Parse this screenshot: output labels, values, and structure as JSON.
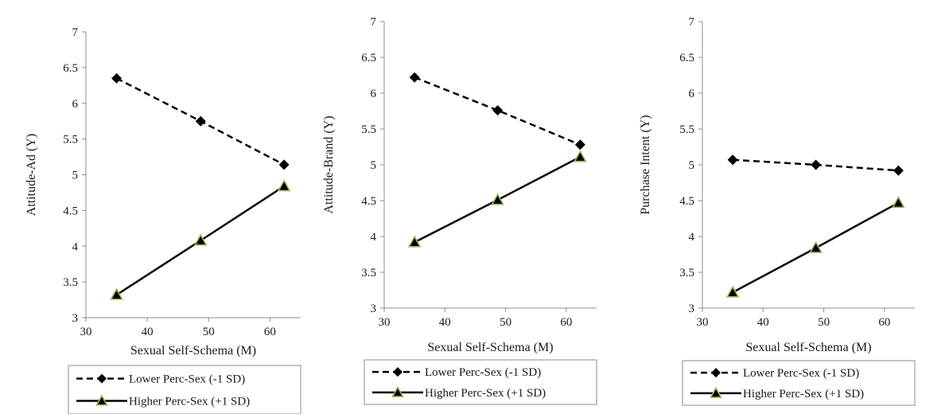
{
  "chart_data": [
    {
      "type": "line",
      "xlabel": "Sexual Self-Schema (M)",
      "ylabel": "Attitude-Ad (Y)",
      "xlim": [
        30,
        65
      ],
      "ylim": [
        3,
        7
      ],
      "x_ticks": [
        "30",
        "40",
        "50",
        "60"
      ],
      "y_ticks": [
        "3",
        "3.5",
        "4",
        "4.5",
        "5",
        "5.5",
        "6",
        "6.5",
        "7"
      ],
      "x": [
        35,
        48.7,
        62.3
      ],
      "series": [
        {
          "name": "Lower Perc-Sex (-1 SD)",
          "style": "dashed",
          "marker": "diamond",
          "values": [
            6.35,
            5.75,
            5.14
          ]
        },
        {
          "name": "Higher Perc-Sex (+1 SD)",
          "style": "solid",
          "marker": "triangle",
          "values": [
            3.32,
            4.08,
            4.84
          ]
        }
      ],
      "grid": false,
      "legend": "bottom"
    },
    {
      "type": "line",
      "xlabel": "Sexual Self-Schema (M)",
      "ylabel": "Attitude-Brand (Y)",
      "xlim": [
        30,
        65
      ],
      "ylim": [
        3,
        7
      ],
      "x_ticks": [
        "30",
        "40",
        "50",
        "60"
      ],
      "y_ticks": [
        "3",
        "3.5",
        "4",
        "4.5",
        "5",
        "5.5",
        "6",
        "6.5",
        "7"
      ],
      "x": [
        35,
        48.7,
        62.3
      ],
      "series": [
        {
          "name": "Lower Perc-Sex (-1 SD)",
          "style": "dashed",
          "marker": "diamond",
          "values": [
            6.22,
            5.76,
            5.28
          ]
        },
        {
          "name": "Higher Perc-Sex (+1 SD)",
          "style": "solid",
          "marker": "triangle",
          "values": [
            3.92,
            4.51,
            5.11
          ]
        }
      ],
      "grid": false,
      "legend": "bottom"
    },
    {
      "type": "line",
      "xlabel": "Sexual Self-Schema (M)",
      "ylabel": "Purchase Intent (Y)",
      "xlim": [
        30,
        65
      ],
      "ylim": [
        3,
        7
      ],
      "x_ticks": [
        "30",
        "40",
        "50",
        "60"
      ],
      "y_ticks": [
        "3",
        "3.5",
        "4",
        "4.5",
        "5",
        "5.5",
        "6",
        "6.5",
        "7"
      ],
      "x": [
        35,
        48.7,
        62.3
      ],
      "series": [
        {
          "name": "Lower Perc-Sex (-1 SD)",
          "style": "dashed",
          "marker": "diamond",
          "values": [
            5.07,
            5.0,
            4.92
          ]
        },
        {
          "name": "Higher Perc-Sex (+1 SD)",
          "style": "solid",
          "marker": "triangle",
          "values": [
            3.22,
            3.84,
            4.47
          ]
        }
      ],
      "grid": false,
      "legend": "bottom"
    }
  ],
  "colors": {
    "line": "#000000",
    "marker_fill": "#000000",
    "triangle_outline": "#9bbb59",
    "axis": "#8c8c8c",
    "legend_border": "#8c8c8c"
  }
}
